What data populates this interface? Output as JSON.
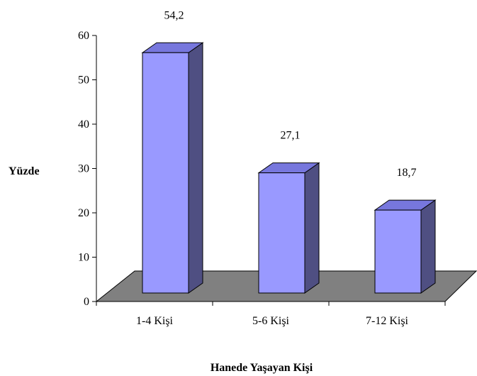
{
  "chart_data": {
    "type": "bar",
    "style": "3d-column",
    "categories": [
      "1-4 Kişi",
      "5-6 Kişi",
      "7-12 Kişi"
    ],
    "values": [
      54.2,
      27.1,
      18.7
    ],
    "value_labels": [
      "54,2",
      "27,1",
      "18,7"
    ],
    "xlabel": "Hanede Yaşayan Kişi",
    "ylabel": "Yüzde",
    "ylim": [
      0,
      60
    ],
    "yticks": [
      "0",
      "10",
      "20",
      "30",
      "40",
      "50",
      "60"
    ],
    "grid": false,
    "legend": "none",
    "colors": {
      "bar_front": "#9999ff",
      "bar_top": "#7777dd",
      "bar_side": "#4f4f82",
      "floor": "#808080"
    }
  }
}
